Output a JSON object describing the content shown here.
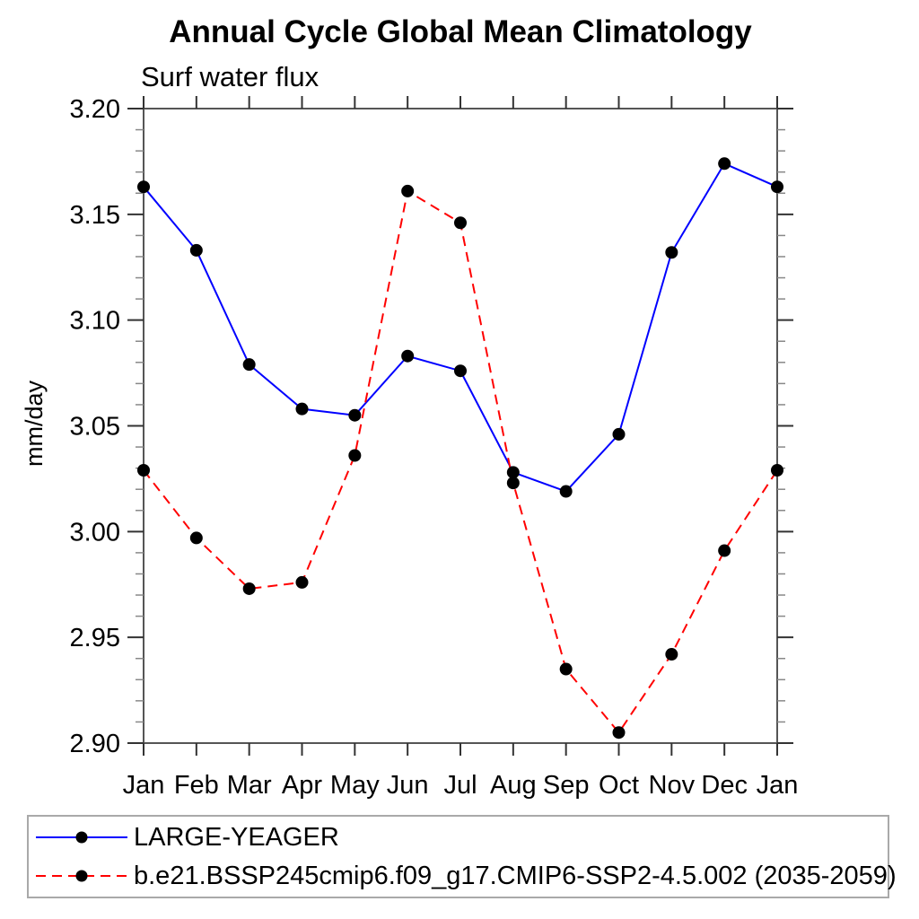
{
  "chart": {
    "title": "Annual Cycle Global Mean Climatology",
    "subtitle": "Surf water flux",
    "y_unit": "mm/day"
  },
  "chart_data": {
    "type": "line",
    "title": "Annual Cycle Global Mean Climatology",
    "subtitle": "Surf water flux",
    "xlabel": "",
    "ylabel": "mm/day",
    "categories": [
      "Jan",
      "Feb",
      "Mar",
      "Apr",
      "May",
      "Jun",
      "Jul",
      "Aug",
      "Sep",
      "Oct",
      "Nov",
      "Dec",
      "Jan"
    ],
    "series": [
      {
        "name": "LARGE-YEAGER",
        "color": "#0000ff",
        "style": "solid",
        "marker": "filled-black-circle",
        "values": [
          3.163,
          3.133,
          3.079,
          3.058,
          3.055,
          3.083,
          3.076,
          3.028,
          3.019,
          3.046,
          3.132,
          3.174,
          3.163
        ]
      },
      {
        "name": "b.e21.BSSP245cmip6.f09_g17.CMIP6-SSP2-4.5.002 (2035-2059)",
        "color": "#ff0000",
        "style": "dashed",
        "marker": "filled-black-circle",
        "values": [
          3.029,
          2.997,
          2.973,
          2.976,
          3.036,
          3.161,
          3.146,
          3.023,
          2.935,
          2.905,
          2.942,
          2.991,
          3.029
        ]
      }
    ],
    "ylim": [
      2.9,
      3.2
    ],
    "y_major_step": 0.05,
    "y_minor_step": 0.01,
    "y_tick_labels": [
      "3.20",
      "3.15",
      "3.10",
      "3.05",
      "3.00",
      "2.95",
      "2.90"
    ],
    "grid": false,
    "legend_position": "bottom-left-box"
  },
  "legend": {
    "items": [
      {
        "label": "LARGE-YEAGER",
        "color": "#0000ff",
        "line_style": "solid",
        "marker": "filled-black-circle"
      },
      {
        "label": "b.e21.BSSP245cmip6.f09_g17.CMIP6-SSP2-4.5.002 (2035-2059)",
        "color": "#ff0000",
        "line_style": "dashed",
        "marker": "filled-black-circle"
      }
    ]
  }
}
